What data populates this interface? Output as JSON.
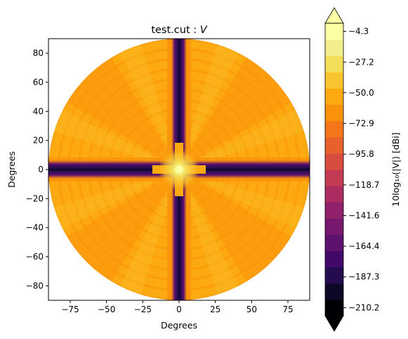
{
  "chart_data": {
    "type": "heatmap",
    "subtype": "filled-contour polar disc",
    "title": "test.cut : ",
    "title_italic": "V",
    "xlabel": "Degrees",
    "ylabel": "Degrees",
    "xlim": [
      -90,
      90
    ],
    "ylim": [
      -90,
      90
    ],
    "x_ticks": [
      -75,
      -50,
      -25,
      0,
      25,
      50,
      75
    ],
    "y_ticks": [
      80,
      60,
      40,
      20,
      0,
      -20,
      -40,
      -60,
      -80
    ],
    "x_tick_labels": [
      "−75",
      "−50",
      "−25",
      "0",
      "25",
      "50",
      "75"
    ],
    "y_tick_labels": [
      "80",
      "60",
      "40",
      "20",
      "0",
      "−20",
      "−40",
      "−60",
      "−80"
    ],
    "grid": false,
    "colormap": "inferno",
    "colorbar": {
      "label": "10log₁₀(|V|) [dBi]",
      "min": -210.2,
      "max": -4.3,
      "extend": "both",
      "levels": 18,
      "tick_values": [
        -4.3,
        -27.2,
        -50.0,
        -72.9,
        -95.8,
        -118.7,
        -141.6,
        -164.4,
        -187.3,
        -210.2
      ],
      "tick_labels": [
        "−4.3",
        "−27.2",
        "−50.0",
        "−72.9",
        "−95.8",
        "−118.7",
        "−141.6",
        "−164.4",
        "−187.3",
        "−210.2"
      ],
      "colors": [
        "#000004",
        "#0c0826",
        "#240c4f",
        "#42096a",
        "#5c126e",
        "#76196e",
        "#91216a",
        "#ab2c61",
        "#c33b52",
        "#d84d3f",
        "#e8612c",
        "#f37719",
        "#f99109",
        "#fcaa10",
        "#f9c42e",
        "#f3de5a",
        "#f2ee8c",
        "#fcffa4"
      ]
    },
    "description_data": {
      "disc_radius_deg": 90,
      "background_level_dBi": [
        -50.0,
        -38.6
      ],
      "deep_nulls": [
        {
          "axis": "vertical",
          "x_deg": 0,
          "level_dBi": -187.3
        },
        {
          "axis": "horizontal",
          "y_deg": 0,
          "level_dBi": -187.3
        }
      ],
      "peak": {
        "x_deg": 0,
        "y_deg": 0,
        "level_dBi": -4.3
      }
    }
  }
}
